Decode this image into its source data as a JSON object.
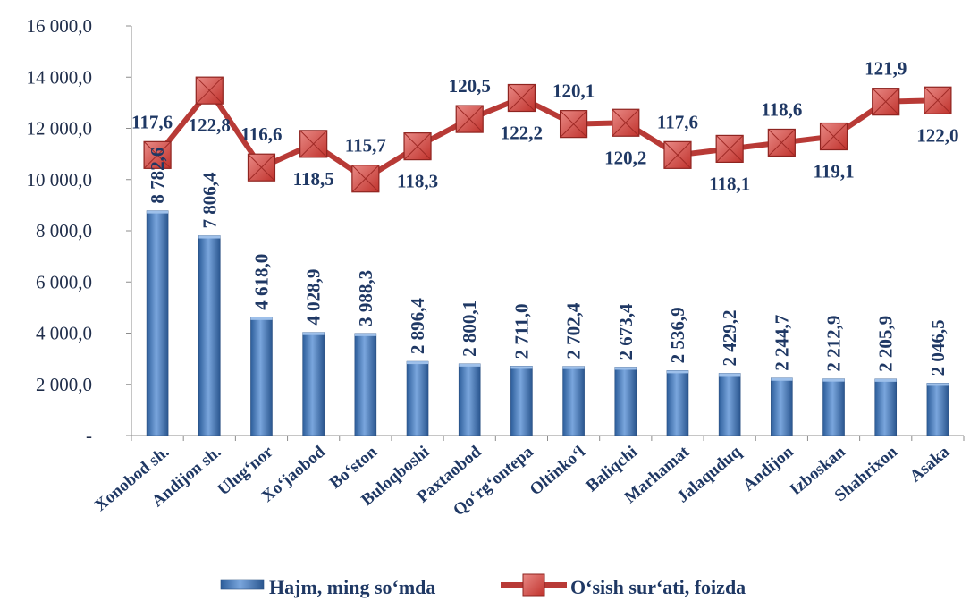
{
  "chart_data": {
    "type": "bar",
    "categories": [
      "Xonobod sh.",
      "Andijon sh.",
      "Ulug‘nor",
      "Xo‘jaobod",
      "Bo‘ston",
      "Buloqboshi",
      "Paxtaobod",
      "Qo‘rg‘ontepa",
      "Oltinko‘l",
      "Baliqchi",
      "Marhamat",
      "Jalaquduq",
      "Andijon",
      "Izboskan",
      "Shahrixon",
      "Asaka"
    ],
    "series": [
      {
        "name": "Hajm, ming so‘mda",
        "type": "bar",
        "color": "#4f81bd",
        "values": [
          8782.6,
          7806.4,
          4618.0,
          4028.9,
          3988.3,
          2896.4,
          2800.1,
          2711.0,
          2702.4,
          2673.4,
          2536.9,
          2429.2,
          2244.7,
          2212.9,
          2205.9,
          2046.5
        ],
        "labels": [
          "8 782,6",
          "7 806,4",
          "4 618,0",
          "4 028,9",
          "3 988,3",
          "2 896,4",
          "2 800,1",
          "2 711,0",
          "2 702,4",
          "2 673,4",
          "2 536,9",
          "2 429,2",
          "2 244,7",
          "2 212,9",
          "2 205,9",
          "2 046,5"
        ]
      },
      {
        "name": "O‘sish sur‘ati, foizda",
        "type": "line",
        "color": "#c0504d",
        "values": [
          117.6,
          122.8,
          116.6,
          118.5,
          115.7,
          118.3,
          120.5,
          122.2,
          120.1,
          120.2,
          117.6,
          118.1,
          118.6,
          119.1,
          121.9,
          122.0
        ],
        "labels": [
          "117,6",
          "122,8",
          "116,6",
          "118,5",
          "115,7",
          "118,3",
          "120,5",
          "122,2",
          "120,1",
          "120,2",
          "117,6",
          "118,1",
          "118,6",
          "119,1",
          "121,9",
          "122,0"
        ]
      }
    ],
    "y_axis": {
      "ylim": [
        0,
        16000
      ],
      "ticks": [
        0,
        2000,
        4000,
        6000,
        8000,
        10000,
        12000,
        14000,
        16000
      ],
      "tick_labels": [
        "-",
        "2 000,0",
        "4 000,0",
        "6 000,0",
        "8 000,0",
        "10 000,0",
        "12 000,0",
        "14 000,0",
        "16 000,0"
      ]
    },
    "line_axis_hidden": {
      "ylim": [
        95,
        128
      ]
    },
    "grid": false,
    "legend": "bottom"
  }
}
